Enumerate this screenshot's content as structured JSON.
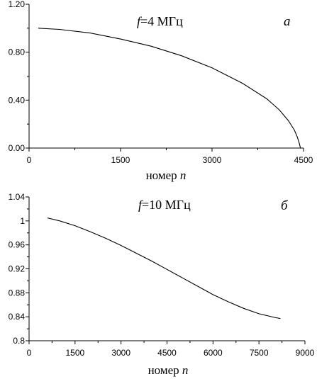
{
  "chart_data": [
    {
      "type": "line",
      "panel": "а",
      "annotation": {
        "f_symbol": "f",
        "text": "=4 МГц"
      },
      "xlabel": {
        "prefix": "номер ",
        "var": "n"
      },
      "xlim": [
        0,
        4500
      ],
      "ylim": [
        0,
        1.2
      ],
      "x_ticks": [
        "0",
        "1500",
        "3000",
        "4500"
      ],
      "x_tick_values": [
        0,
        1500,
        3000,
        4500
      ],
      "y_ticks": [
        "0.00",
        "0.40",
        "0.80",
        "1.20"
      ],
      "y_tick_values": [
        0,
        0.4,
        0.8,
        1.2
      ],
      "series": [
        {
          "x": [
            150,
            500,
            1000,
            1500,
            2000,
            2500,
            3000,
            3500,
            3900,
            4100,
            4250,
            4350,
            4400,
            4430,
            4450
          ],
          "y": [
            1.0,
            0.99,
            0.96,
            0.91,
            0.85,
            0.77,
            0.67,
            0.54,
            0.41,
            0.32,
            0.23,
            0.15,
            0.09,
            0.04,
            0.0
          ]
        }
      ]
    },
    {
      "type": "line",
      "panel": "б",
      "annotation": {
        "f_symbol": "f",
        "text": "=10 МГц"
      },
      "xlabel": {
        "prefix": "номер ",
        "var": "n"
      },
      "xlim": [
        0,
        9000
      ],
      "ylim": [
        0.8,
        1.04
      ],
      "x_ticks": [
        "0",
        "1500",
        "3000",
        "4500",
        "6000",
        "7500",
        "9000"
      ],
      "x_tick_values": [
        0,
        1500,
        3000,
        4500,
        6000,
        7500,
        9000
      ],
      "y_ticks": [
        "0.8",
        "0.84",
        "0.88",
        "0.92",
        "0.96",
        "1",
        "1.04"
      ],
      "y_tick_values": [
        0.8,
        0.84,
        0.88,
        0.92,
        0.96,
        1.0,
        1.04
      ],
      "series": [
        {
          "x": [
            600,
            1000,
            1500,
            2000,
            2500,
            3000,
            3500,
            4000,
            4500,
            5000,
            5500,
            6000,
            6500,
            7000,
            7500,
            8000,
            8200
          ],
          "y": [
            1.005,
            1.0,
            0.992,
            0.982,
            0.971,
            0.959,
            0.946,
            0.933,
            0.919,
            0.905,
            0.891,
            0.877,
            0.865,
            0.854,
            0.845,
            0.839,
            0.837
          ]
        }
      ]
    }
  ]
}
